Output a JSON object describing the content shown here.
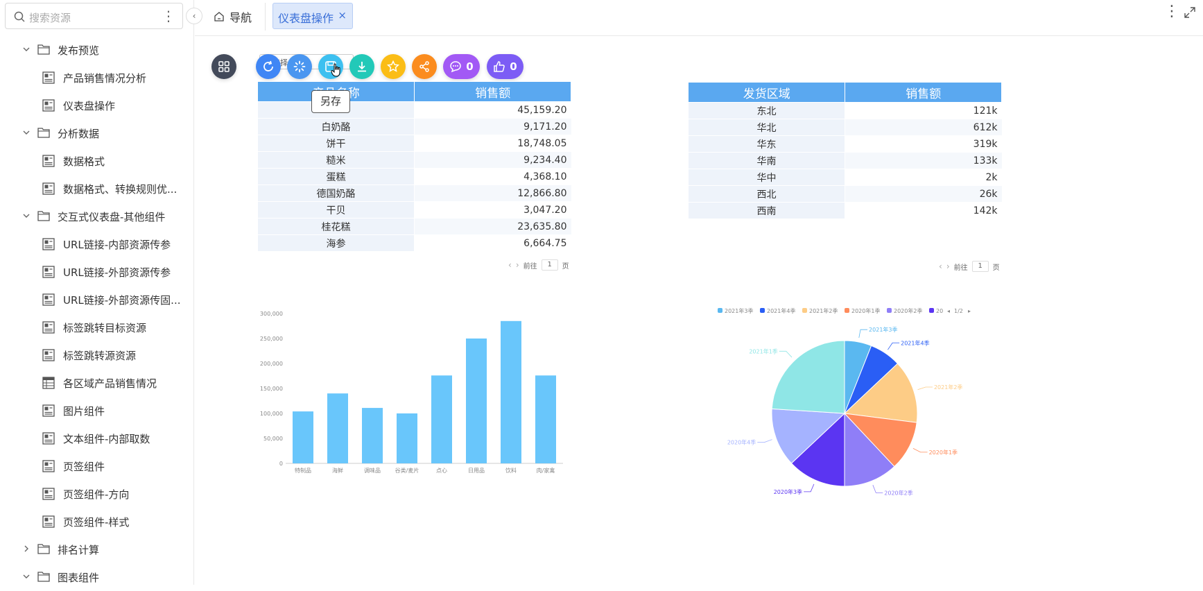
{
  "sidebar": {
    "search_placeholder": "搜索资源",
    "items": [
      {
        "type": "folder",
        "label": "发布预览",
        "expanded": true
      },
      {
        "type": "leaf",
        "label": "产品销售情况分析",
        "icon": "dashboard-icon"
      },
      {
        "type": "leaf",
        "label": "仪表盘操作",
        "icon": "dashboard-icon"
      },
      {
        "type": "folder",
        "label": "分析数据",
        "expanded": true
      },
      {
        "type": "leaf",
        "label": "数据格式",
        "icon": "dashboard-icon"
      },
      {
        "type": "leaf",
        "label": "数据格式、转换规则优...",
        "icon": "dashboard-icon"
      },
      {
        "type": "folder",
        "label": "交互式仪表盘-其他组件",
        "expanded": true
      },
      {
        "type": "leaf",
        "label": "URL链接-内部资源传参",
        "icon": "dashboard-icon"
      },
      {
        "type": "leaf",
        "label": "URL链接-外部资源传参",
        "icon": "dashboard-icon"
      },
      {
        "type": "leaf",
        "label": "URL链接-外部资源传固...",
        "icon": "dashboard-icon"
      },
      {
        "type": "leaf",
        "label": "标签跳转目标资源",
        "icon": "dashboard-icon"
      },
      {
        "type": "leaf",
        "label": "标签跳转源资源",
        "icon": "dashboard-icon"
      },
      {
        "type": "leaf",
        "label": "各区域产品销售情况",
        "icon": "table-icon"
      },
      {
        "type": "leaf",
        "label": "图片组件",
        "icon": "dashboard-icon"
      },
      {
        "type": "leaf",
        "label": "文本组件-内部取数",
        "icon": "dashboard-icon"
      },
      {
        "type": "leaf",
        "label": "页签组件",
        "icon": "dashboard-icon"
      },
      {
        "type": "leaf",
        "label": "页签组件-方向",
        "icon": "dashboard-icon"
      },
      {
        "type": "leaf",
        "label": "页签组件-样式",
        "icon": "dashboard-icon"
      },
      {
        "type": "folder",
        "label": "排名计算",
        "expanded": false
      },
      {
        "type": "folder",
        "label": "图表组件",
        "expanded": true
      }
    ]
  },
  "topbar": {
    "nav_label": "导航",
    "active_tab": "仪表盘操作",
    "close_symbol": "×"
  },
  "toolbar": {
    "comment_count": "0",
    "like_count": "0",
    "tooltip": "另存",
    "select_placeholder": "选择"
  },
  "colors": {
    "accent": "#3a6fd8",
    "table_header": "#5aa8f0",
    "bar": "#69c6fb"
  },
  "table1": {
    "headers": [
      "产品名称",
      "销售额"
    ],
    "rows": [
      [
        "",
        "45,159.20"
      ],
      [
        "白奶酪",
        "9,171.20"
      ],
      [
        "饼干",
        "18,748.05"
      ],
      [
        "糙米",
        "9,234.40"
      ],
      [
        "蛋糕",
        "4,368.10"
      ],
      [
        "德国奶酪",
        "12,866.80"
      ],
      [
        "干贝",
        "3,047.20"
      ],
      [
        "桂花糕",
        "23,635.80"
      ],
      [
        "海参",
        "6,664.75"
      ]
    ],
    "pager_prefix": "前往",
    "page": "1",
    "pager_suffix": "页"
  },
  "table2": {
    "headers": [
      "发货区域",
      "销售额"
    ],
    "rows": [
      [
        "东北",
        "121k"
      ],
      [
        "华北",
        "612k"
      ],
      [
        "华东",
        "319k"
      ],
      [
        "华南",
        "133k"
      ],
      [
        "华中",
        "2k"
      ],
      [
        "西北",
        "26k"
      ],
      [
        "西南",
        "142k"
      ]
    ],
    "pager_prefix": "前往",
    "page": "1",
    "pager_suffix": "页"
  },
  "chart_data": [
    {
      "type": "bar",
      "categories": [
        "特制品",
        "海鲜",
        "调味品",
        "谷类/麦片",
        "点心",
        "日用品",
        "饮料",
        "肉/家禽"
      ],
      "values": [
        104000,
        140000,
        111000,
        100000,
        176000,
        250000,
        285000,
        176000
      ],
      "ylim": [
        0,
        300000
      ],
      "yticks": [
        "0",
        "50,000",
        "100,000",
        "150,000",
        "200,000",
        "250,000",
        "300,000"
      ],
      "color": "#69c6fb"
    },
    {
      "type": "pie",
      "legend": [
        "2021年3季",
        "2021年4季",
        "2021年2季",
        "2020年1季",
        "2020年2季",
        "20"
      ],
      "legend_page": "1/2",
      "legend_colors": [
        "#5ab8f0",
        "#2a5ef5",
        "#fdcc86",
        "#ff8c5c",
        "#8f7ef7",
        "#5b35f2"
      ],
      "slices": [
        {
          "label": "2021年3季",
          "value": 6,
          "color": "#5ab8f0"
        },
        {
          "label": "2021年4季",
          "value": 7,
          "color": "#2a5ef5"
        },
        {
          "label": "2021年2季",
          "value": 14,
          "color": "#fdcc86"
        },
        {
          "label": "2020年1季",
          "value": 11,
          "color": "#ff8c5c"
        },
        {
          "label": "2020年2季",
          "value": 12,
          "color": "#8f7ef7"
        },
        {
          "label": "2020年3季",
          "value": 13,
          "color": "#5b35f2"
        },
        {
          "label": "2020年4季",
          "value": 13,
          "color": "#a5b3ff"
        },
        {
          "label": "2021年1季",
          "value": 24,
          "color": "#8fe6e6"
        }
      ]
    }
  ]
}
